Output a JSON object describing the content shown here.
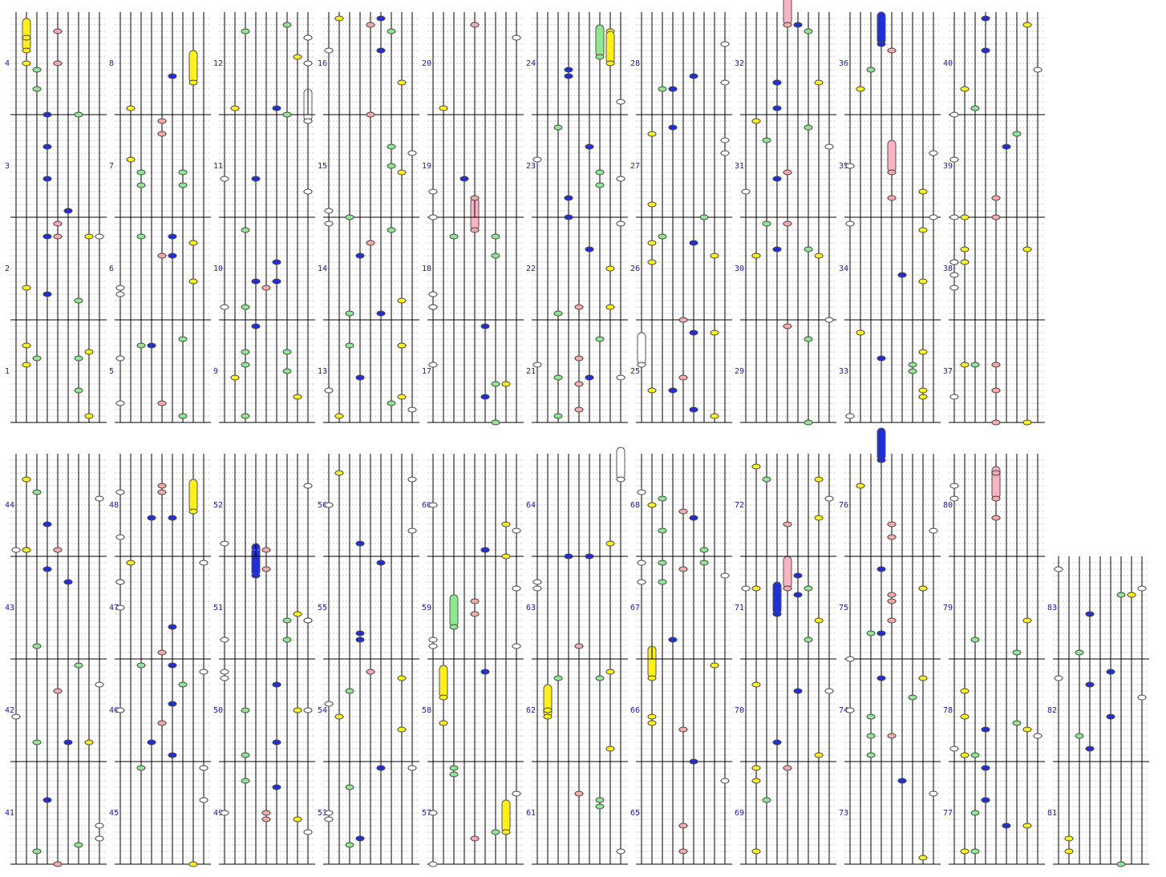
{
  "measures": [
    1,
    2,
    3,
    4,
    5,
    6,
    7,
    8,
    9,
    10,
    11,
    12,
    13,
    14,
    15,
    16,
    17,
    18,
    19,
    20,
    21,
    22,
    23,
    24,
    25,
    26,
    27,
    28,
    29,
    30,
    31,
    32,
    33,
    34,
    35,
    36,
    37,
    38,
    39,
    40,
    41,
    42,
    43,
    44,
    45,
    46,
    47,
    48,
    49,
    50,
    51,
    52,
    53,
    54,
    55,
    56,
    57,
    58,
    59,
    60,
    61,
    62,
    63,
    64,
    65,
    66,
    67,
    68,
    69,
    70,
    71,
    72,
    73,
    74,
    75,
    76,
    77,
    78,
    79,
    80,
    81,
    82,
    83
  ]
}
